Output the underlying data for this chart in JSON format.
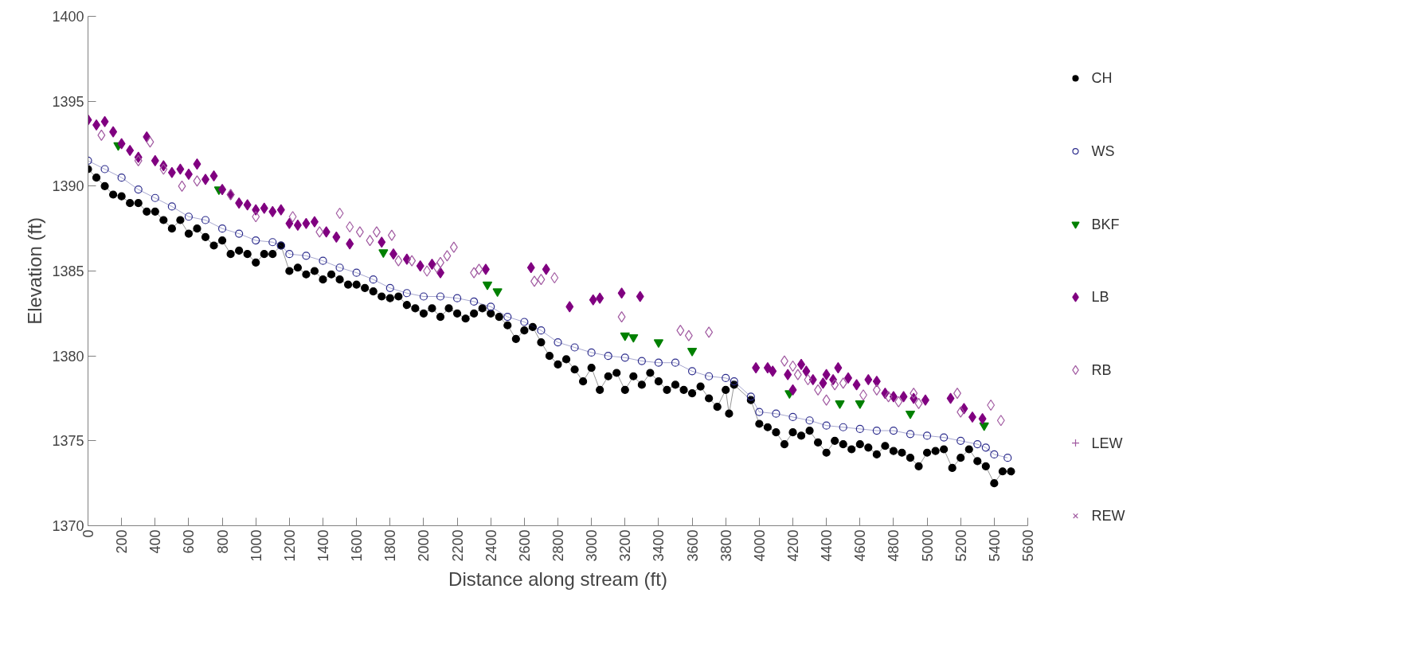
{
  "chart_data": {
    "type": "scatter",
    "xlabel": "Distance along stream (ft)",
    "ylabel": "Elevation (ft)",
    "xlim": [
      0,
      5600
    ],
    "ylim": [
      1370,
      1400
    ],
    "xticks": [
      0,
      200,
      400,
      600,
      800,
      1000,
      1200,
      1400,
      1600,
      1800,
      2000,
      2200,
      2400,
      2600,
      2800,
      3000,
      3200,
      3400,
      3600,
      3800,
      4000,
      4200,
      4400,
      4600,
      4800,
      5000,
      5200,
      5400,
      5600
    ],
    "yticks": [
      1370,
      1375,
      1380,
      1385,
      1390,
      1395,
      1400
    ],
    "grid": false,
    "legend": "right",
    "series": [
      {
        "name": "CH",
        "type": "line",
        "marker": "circle",
        "color": "#000000",
        "x": [
          0,
          50,
          100,
          150,
          200,
          250,
          300,
          350,
          400,
          450,
          500,
          550,
          600,
          650,
          700,
          750,
          800,
          850,
          900,
          950,
          1000,
          1050,
          1100,
          1150,
          1200,
          1250,
          1300,
          1350,
          1400,
          1450,
          1500,
          1550,
          1600,
          1650,
          1700,
          1750,
          1800,
          1850,
          1900,
          1950,
          2000,
          2050,
          2100,
          2150,
          2200,
          2250,
          2300,
          2350,
          2400,
          2450,
          2500,
          2550,
          2600,
          2650,
          2700,
          2750,
          2800,
          2850,
          2900,
          2950,
          3000,
          3050,
          3100,
          3150,
          3200,
          3250,
          3300,
          3350,
          3400,
          3450,
          3500,
          3550,
          3600,
          3650,
          3700,
          3750,
          3800,
          3820,
          3850,
          3950,
          4000,
          4050,
          4100,
          4150,
          4200,
          4250,
          4300,
          4350,
          4400,
          4450,
          4500,
          4550,
          4600,
          4650,
          4700,
          4750,
          4800,
          4850,
          4900,
          4950,
          5000,
          5050,
          5100,
          5150,
          5200,
          5250,
          5300,
          5350,
          5400,
          5450,
          5500
        ],
        "values": [
          1391,
          1390.5,
          1390,
          1389.5,
          1389.4,
          1389,
          1389,
          1388.5,
          1388.5,
          1388,
          1387.5,
          1388,
          1387.2,
          1387.5,
          1387,
          1386.5,
          1386.8,
          1386,
          1386.2,
          1386,
          1385.5,
          1386,
          1386,
          1386.5,
          1385,
          1385.2,
          1384.8,
          1385,
          1384.5,
          1384.8,
          1384.5,
          1384.2,
          1384.2,
          1384,
          1383.8,
          1383.5,
          1383.4,
          1383.5,
          1383,
          1382.8,
          1382.5,
          1382.8,
          1382.3,
          1382.8,
          1382.5,
          1382.2,
          1382.5,
          1382.8,
          1382.5,
          1382.3,
          1381.8,
          1381,
          1381.5,
          1381.7,
          1380.8,
          1380,
          1379.5,
          1379.8,
          1379.2,
          1378.5,
          1379.3,
          1378,
          1378.8,
          1379,
          1378,
          1378.8,
          1378.3,
          1379,
          1378.5,
          1378,
          1378.3,
          1378,
          1377.8,
          1378.2,
          1377.5,
          1377,
          1378,
          1376.6,
          1378.3,
          1377.4,
          1376,
          1375.8,
          1375.5,
          1374.8,
          1375.5,
          1375.3,
          1375.6,
          1374.9,
          1374.3,
          1375,
          1374.8,
          1374.5,
          1374.8,
          1374.6,
          1374.2,
          1374.7,
          1374.4,
          1374.3,
          1374,
          1373.5,
          1374.3,
          1374.4,
          1374.5,
          1373.4,
          1374,
          1374.5,
          1373.8,
          1373.5,
          1372.5,
          1373.2,
          1373.2
        ]
      },
      {
        "name": "WS",
        "type": "line",
        "marker": "circle_open",
        "color": "#2b2b8c",
        "x": [
          0,
          100,
          200,
          300,
          400,
          500,
          600,
          700,
          800,
          900,
          1000,
          1100,
          1150,
          1200,
          1300,
          1400,
          1500,
          1600,
          1700,
          1800,
          1900,
          2000,
          2100,
          2200,
          2300,
          2400,
          2500,
          2600,
          2700,
          2800,
          2900,
          3000,
          3100,
          3200,
          3300,
          3400,
          3500,
          3600,
          3700,
          3800,
          3850,
          3950,
          4000,
          4100,
          4200,
          4300,
          4400,
          4500,
          4600,
          4700,
          4800,
          4900,
          5000,
          5100,
          5200,
          5300,
          5350,
          5400,
          5480
        ],
        "values": [
          1391.5,
          1391,
          1390.5,
          1389.8,
          1389.3,
          1388.8,
          1388.2,
          1388,
          1387.5,
          1387.2,
          1386.8,
          1386.7,
          1386.5,
          1386,
          1385.9,
          1385.6,
          1385.2,
          1384.9,
          1384.5,
          1384,
          1383.7,
          1383.5,
          1383.5,
          1383.4,
          1383.2,
          1382.9,
          1382.3,
          1382,
          1381.5,
          1380.8,
          1380.5,
          1380.2,
          1380,
          1379.9,
          1379.7,
          1379.6,
          1379.6,
          1379.1,
          1378.8,
          1378.7,
          1378.5,
          1377.6,
          1376.7,
          1376.6,
          1376.4,
          1376.2,
          1375.9,
          1375.8,
          1375.7,
          1375.6,
          1375.6,
          1375.4,
          1375.3,
          1375.2,
          1375,
          1374.8,
          1374.6,
          1374.2,
          1374
        ]
      },
      {
        "name": "BKF",
        "marker": "triangle",
        "color": "#008000",
        "x": [
          180,
          780,
          1760,
          2380,
          2440,
          3200,
          3250,
          3400,
          3600,
          4180,
          4480,
          4600,
          4900,
          5340
        ],
        "values": [
          1392.4,
          1389.8,
          1386.1,
          1384.2,
          1383.8,
          1381.2,
          1381.1,
          1380.8,
          1380.3,
          1377.8,
          1377.2,
          1377.2,
          1376.6,
          1375.9
        ]
      },
      {
        "name": "LB",
        "marker": "diamond",
        "color": "#800080",
        "x": [
          0,
          50,
          100,
          150,
          200,
          250,
          300,
          350,
          400,
          450,
          500,
          550,
          600,
          650,
          700,
          750,
          800,
          850,
          900,
          950,
          1000,
          1050,
          1100,
          1150,
          1200,
          1250,
          1300,
          1350,
          1420,
          1480,
          1560,
          1750,
          1820,
          1900,
          1980,
          2050,
          2100,
          2370,
          2640,
          2730,
          2870,
          3010,
          3050,
          3180,
          3290,
          3980,
          4050,
          4080,
          4170,
          4200,
          4250,
          4280,
          4320,
          4380,
          4400,
          4440,
          4470,
          4530,
          4580,
          4650,
          4700,
          4750,
          4800,
          4860,
          4920,
          4990,
          5140,
          5220,
          5270,
          5330
        ],
        "values": [
          1393.9,
          1393.6,
          1393.8,
          1393.2,
          1392.5,
          1392.1,
          1391.7,
          1392.9,
          1391.5,
          1391.2,
          1390.8,
          1391,
          1390.7,
          1391.3,
          1390.4,
          1390.6,
          1389.8,
          1389.5,
          1389,
          1388.9,
          1388.6,
          1388.7,
          1388.5,
          1388.6,
          1387.8,
          1387.7,
          1387.8,
          1387.9,
          1387.3,
          1387,
          1386.6,
          1386.7,
          1386,
          1385.7,
          1385.3,
          1385.4,
          1384.9,
          1385.1,
          1385.2,
          1385.1,
          1382.9,
          1383.3,
          1383.4,
          1383.7,
          1383.5,
          1379.3,
          1379.3,
          1379.1,
          1378.9,
          1378,
          1379.5,
          1379.1,
          1378.6,
          1378.4,
          1378.9,
          1378.6,
          1379.3,
          1378.7,
          1378.3,
          1378.6,
          1378.5,
          1377.8,
          1377.6,
          1377.6,
          1377.5,
          1377.4,
          1377.5,
          1376.9,
          1376.4,
          1376.3
        ]
      },
      {
        "name": "RB",
        "marker": "diamond_open",
        "color": "#a15aa1",
        "x": [
          80,
          300,
          370,
          450,
          560,
          650,
          850,
          1000,
          1220,
          1380,
          1500,
          1560,
          1620,
          1680,
          1720,
          1810,
          1850,
          1930,
          2020,
          2080,
          2100,
          2140,
          2180,
          2300,
          2330,
          2660,
          2700,
          2780,
          3180,
          3530,
          3580,
          3700,
          4150,
          4200,
          4230,
          4290,
          4350,
          4400,
          4450,
          4500,
          4620,
          4700,
          4770,
          4830,
          4920,
          4950,
          5180,
          5200,
          5380,
          5440
        ],
        "values": [
          1393,
          1391.5,
          1392.6,
          1391,
          1390,
          1390.3,
          1389.5,
          1388.2,
          1388.2,
          1387.3,
          1388.4,
          1387.6,
          1387.3,
          1386.8,
          1387.3,
          1387.1,
          1385.6,
          1385.6,
          1385,
          1385.2,
          1385.5,
          1385.9,
          1386.4,
          1384.9,
          1385.1,
          1384.4,
          1384.5,
          1384.6,
          1382.3,
          1381.5,
          1381.2,
          1381.4,
          1379.7,
          1379.4,
          1378.9,
          1378.6,
          1378,
          1377.4,
          1378.3,
          1378.4,
          1377.7,
          1378,
          1377.6,
          1377.3,
          1377.8,
          1377.2,
          1377.8,
          1376.7,
          1377.1,
          1376.2
        ]
      },
      {
        "name": "LEW",
        "marker": "cross",
        "color": "#a15aa1"
      },
      {
        "name": "REW",
        "marker": "x",
        "color": "#a15aa1"
      }
    ]
  }
}
